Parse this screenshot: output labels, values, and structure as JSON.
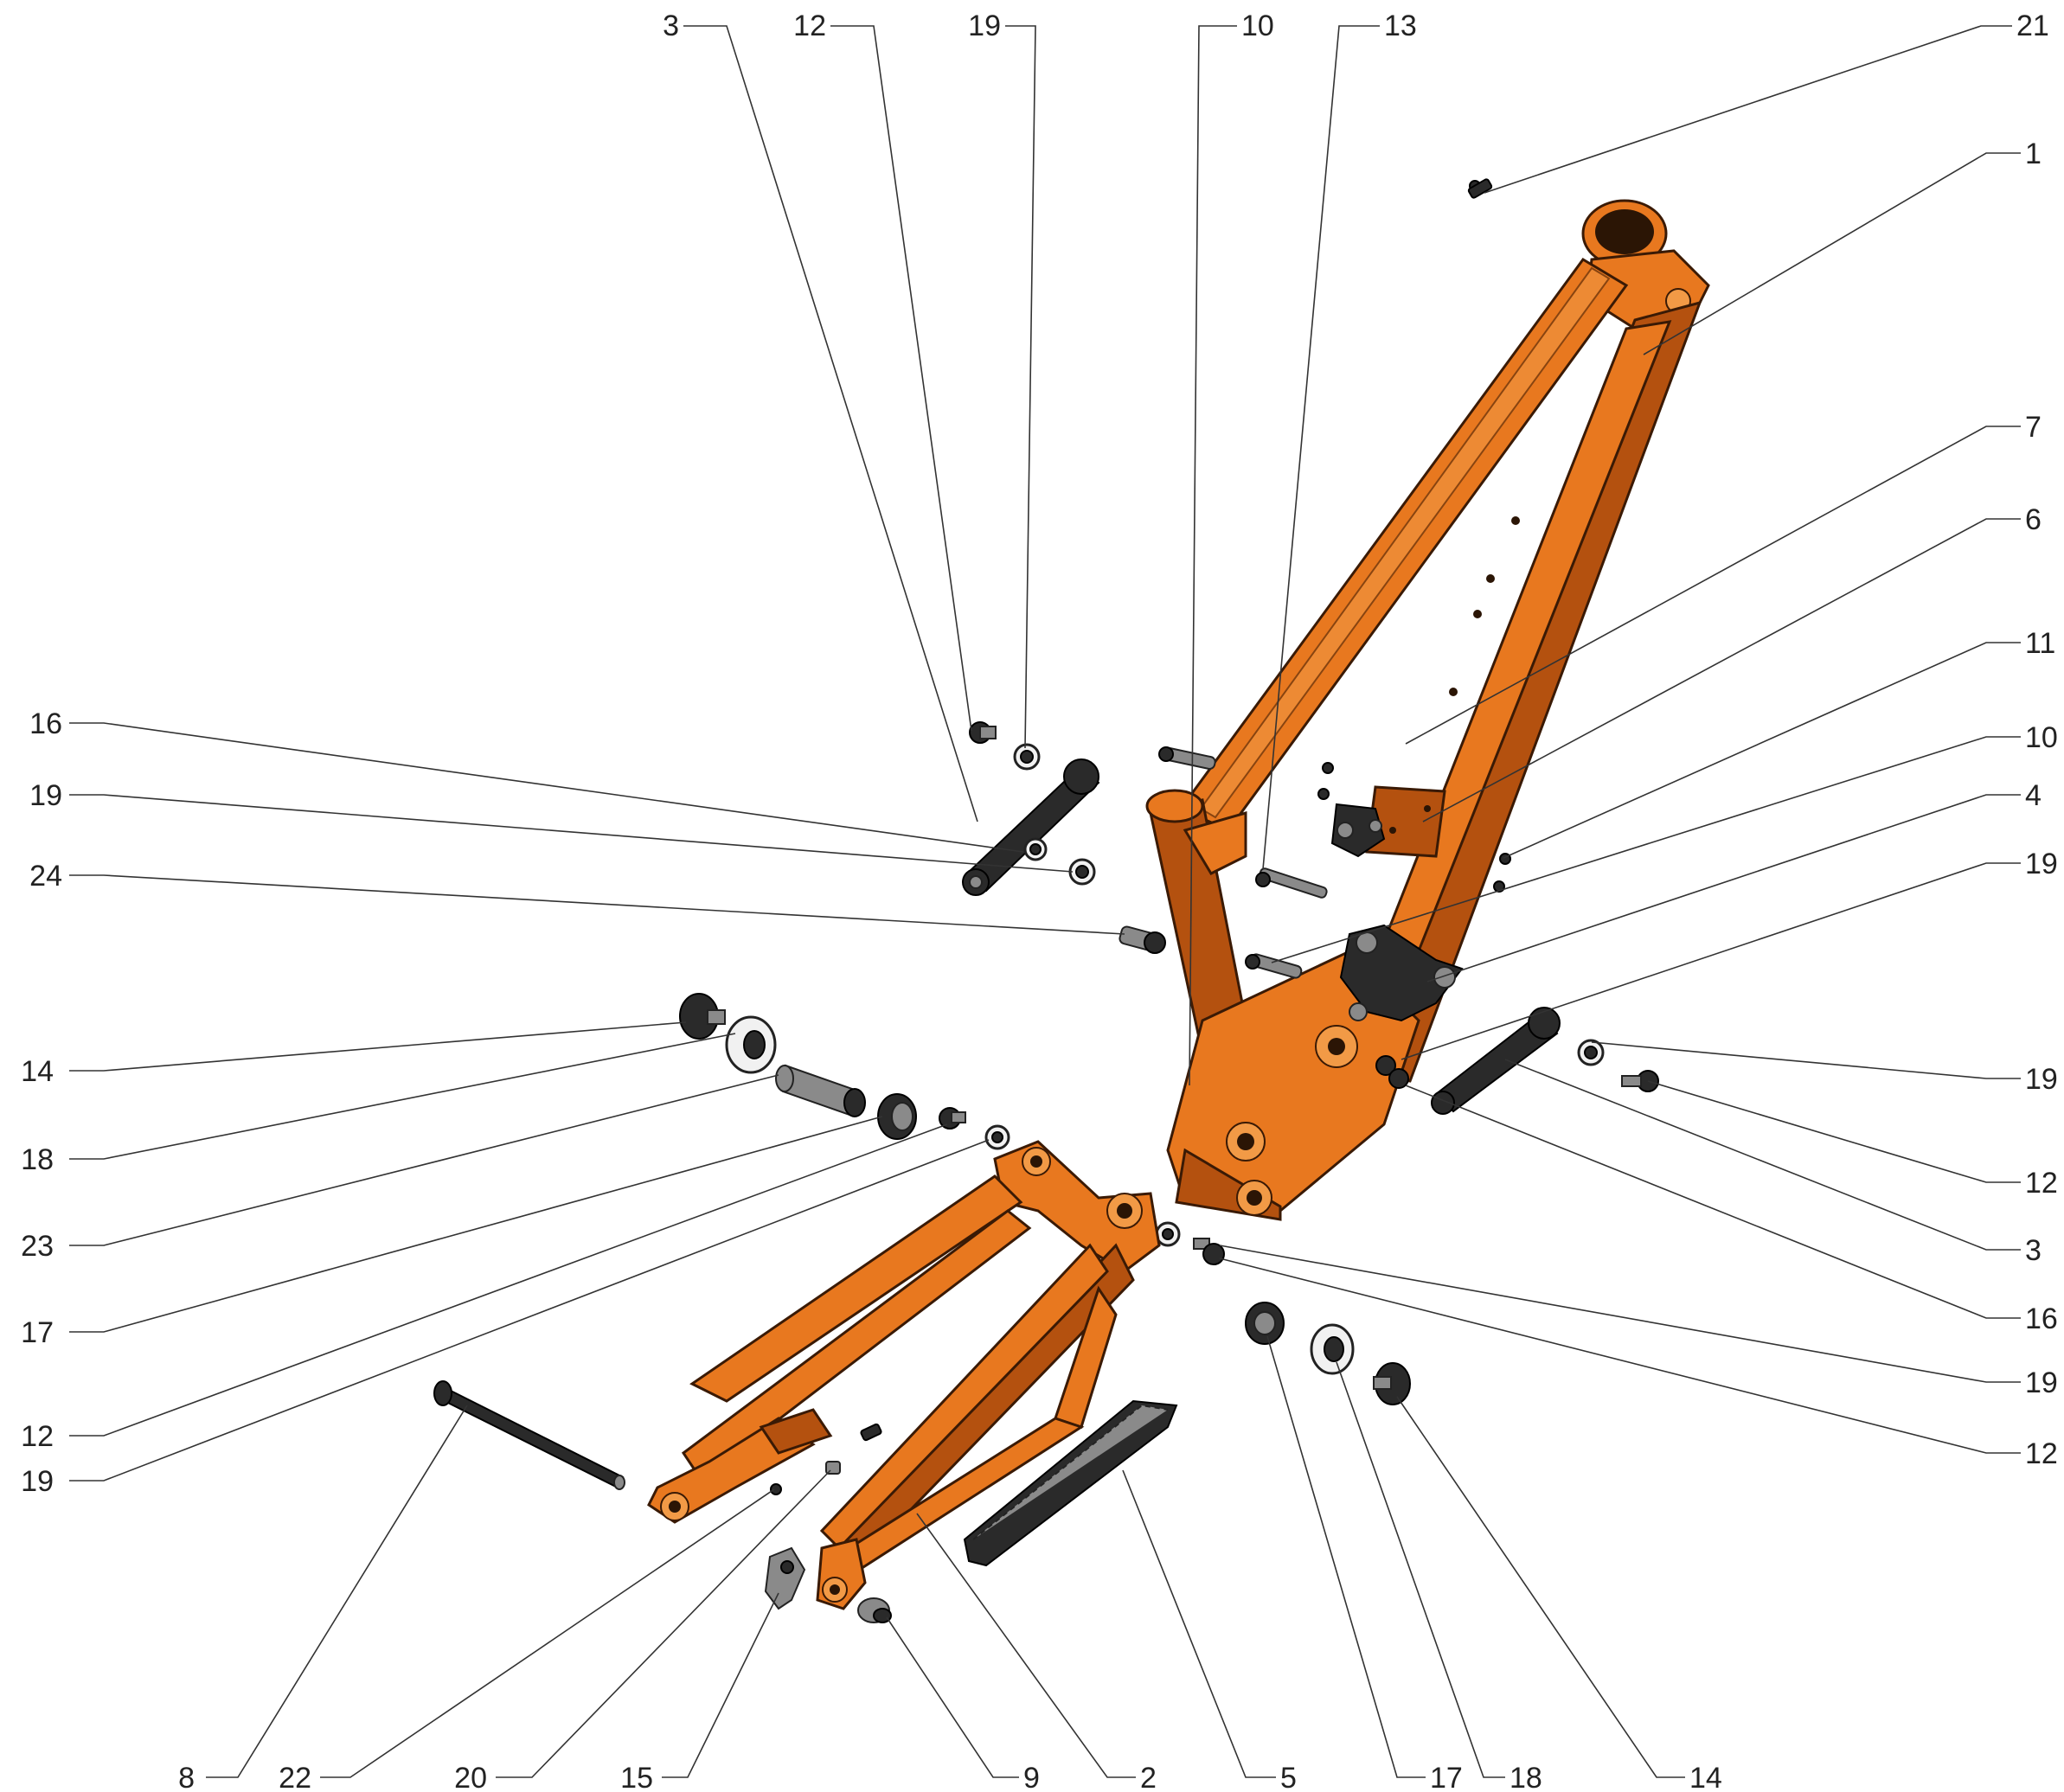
{
  "diagram": {
    "callouts": [
      {
        "id": "c-top-3",
        "text": "3"
      },
      {
        "id": "c-top-12",
        "text": "12"
      },
      {
        "id": "c-top-19",
        "text": "19"
      },
      {
        "id": "c-top-10",
        "text": "10"
      },
      {
        "id": "c-top-13",
        "text": "13"
      },
      {
        "id": "c-top-21",
        "text": "21"
      },
      {
        "id": "c-r-1",
        "text": "1"
      },
      {
        "id": "c-r-7",
        "text": "7"
      },
      {
        "id": "c-r-6",
        "text": "6"
      },
      {
        "id": "c-r-11",
        "text": "11"
      },
      {
        "id": "c-r-10",
        "text": "10"
      },
      {
        "id": "c-r-4",
        "text": "4"
      },
      {
        "id": "c-r-19a",
        "text": "19"
      },
      {
        "id": "c-r-19b",
        "text": "19"
      },
      {
        "id": "c-r-12a",
        "text": "12"
      },
      {
        "id": "c-r-3",
        "text": "3"
      },
      {
        "id": "c-r-16",
        "text": "16"
      },
      {
        "id": "c-r-19c",
        "text": "19"
      },
      {
        "id": "c-r-12b",
        "text": "12"
      },
      {
        "id": "c-l-16",
        "text": "16"
      },
      {
        "id": "c-l-19a",
        "text": "19"
      },
      {
        "id": "c-l-24",
        "text": "24"
      },
      {
        "id": "c-l-14",
        "text": "14"
      },
      {
        "id": "c-l-18",
        "text": "18"
      },
      {
        "id": "c-l-23",
        "text": "23"
      },
      {
        "id": "c-l-17",
        "text": "17"
      },
      {
        "id": "c-l-12",
        "text": "12"
      },
      {
        "id": "c-l-19b",
        "text": "19"
      },
      {
        "id": "c-b-8",
        "text": "8"
      },
      {
        "id": "c-b-22",
        "text": "22"
      },
      {
        "id": "c-b-20",
        "text": "20"
      },
      {
        "id": "c-b-15",
        "text": "15"
      },
      {
        "id": "c-b-9",
        "text": "9"
      },
      {
        "id": "c-b-2",
        "text": "2"
      },
      {
        "id": "c-b-5",
        "text": "5"
      },
      {
        "id": "c-b-17",
        "text": "17"
      },
      {
        "id": "c-b-18",
        "text": "18"
      },
      {
        "id": "c-b-14",
        "text": "14"
      }
    ],
    "colors": {
      "frame": "#e8781f",
      "frame_shadow": "#b4510f",
      "hardware": "#2a2a2a",
      "leader": "#333333"
    }
  }
}
